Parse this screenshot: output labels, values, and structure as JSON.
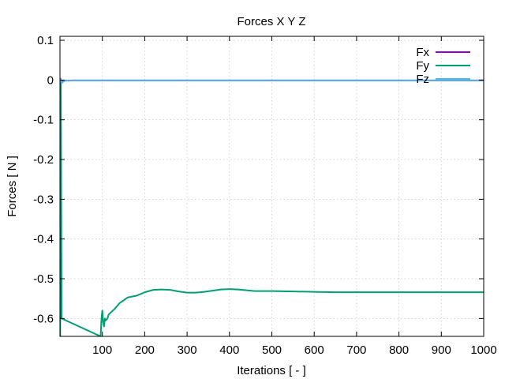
{
  "chart_data": {
    "type": "line",
    "title": "Forces X Y Z",
    "xlabel": "Iterations [ - ]",
    "ylabel": "Forces [ N ]",
    "xlim": [
      0,
      1000
    ],
    "ylim": [
      -0.645,
      0.11
    ],
    "x_ticks": [
      100,
      200,
      300,
      400,
      500,
      600,
      700,
      800,
      900,
      1000
    ],
    "y_ticks": [
      0.1,
      0,
      -0.1,
      -0.2,
      -0.3,
      -0.4,
      -0.5,
      -0.6
    ],
    "x_tick_labels": [
      "100",
      "200",
      "300",
      "400",
      "500",
      "600",
      "700",
      "800",
      "900",
      "1000"
    ],
    "y_tick_labels": [
      "0.1",
      "0",
      "-0.1",
      "-0.2",
      "-0.3",
      "-0.4",
      "-0.5",
      "-0.6"
    ],
    "grid": true,
    "legend_position": "top-right",
    "series": [
      {
        "name": "Fx",
        "color": "#9400d3",
        "x": [
          1,
          3,
          6,
          10,
          15,
          20,
          30,
          50,
          100,
          200,
          400,
          600,
          800,
          1000
        ],
        "y": [
          0.005,
          -0.004,
          -0.003,
          -0.002,
          -0.001,
          -0.0015,
          -0.001,
          -0.001,
          -0.001,
          -0.001,
          -0.001,
          -0.001,
          -0.001,
          -0.001
        ]
      },
      {
        "name": "Fy",
        "color": "#009e73",
        "x": [
          0.5,
          1,
          2,
          3,
          4,
          96,
          98,
          100,
          102,
          104,
          106,
          108,
          112,
          115,
          120,
          130,
          140,
          160,
          180,
          200,
          220,
          240,
          260,
          280,
          300,
          320,
          340,
          360,
          380,
          400,
          420,
          440,
          460,
          480,
          500,
          550,
          600,
          650,
          700,
          800,
          900,
          1000
        ],
        "y": [
          -0.645,
          0.0,
          -0.005,
          -0.3,
          -0.6,
          -0.645,
          -0.6,
          -0.58,
          -0.61,
          -0.62,
          -0.6,
          -0.605,
          -0.6,
          -0.59,
          -0.585,
          -0.575,
          -0.562,
          -0.547,
          -0.543,
          -0.534,
          -0.528,
          -0.527,
          -0.528,
          -0.532,
          -0.535,
          -0.535,
          -0.533,
          -0.53,
          -0.527,
          -0.526,
          -0.527,
          -0.529,
          -0.531,
          -0.531,
          -0.531,
          -0.532,
          -0.533,
          -0.534,
          -0.534,
          -0.534,
          -0.534,
          -0.534
        ]
      },
      {
        "name": "Fz",
        "color": "#56b4e9",
        "x": [
          1,
          2,
          3,
          5,
          8,
          12,
          20,
          40,
          100,
          200,
          400,
          600,
          800,
          1000
        ],
        "y": [
          0.0,
          0.003,
          -0.004,
          -0.007,
          -0.004,
          -0.002,
          -0.001,
          -0.001,
          -0.001,
          -0.001,
          -0.001,
          -0.001,
          -0.001,
          -0.001
        ]
      }
    ]
  }
}
